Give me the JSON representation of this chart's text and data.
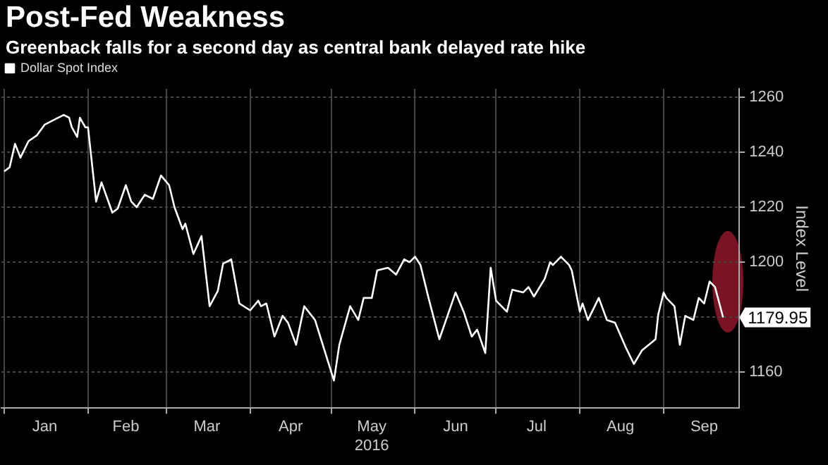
{
  "chart_data": {
    "type": "line",
    "title": "Post-Fed Weakness",
    "subtitle": "Greenback falls for a second day as central bank delayed rate hike",
    "ylabel": "Index Level",
    "x": [
      "2016-01-01",
      "2016-01-03",
      "2016-01-05",
      "2016-01-07",
      "2016-01-10",
      "2016-01-13",
      "2016-01-16",
      "2016-01-19",
      "2016-01-23",
      "2016-01-25",
      "2016-01-26",
      "2016-01-28",
      "2016-01-29",
      "2016-01-31",
      "2016-02-01",
      "2016-02-04",
      "2016-02-06",
      "2016-02-10",
      "2016-02-12",
      "2016-02-15",
      "2016-02-17",
      "2016-02-19",
      "2016-02-22",
      "2016-02-25",
      "2016-02-28",
      "2016-03-02",
      "2016-03-04",
      "2016-03-07",
      "2016-03-08",
      "2016-03-11",
      "2016-03-14",
      "2016-03-17",
      "2016-03-20",
      "2016-03-22",
      "2016-03-25",
      "2016-03-28",
      "2016-04-01",
      "2016-04-04",
      "2016-04-05",
      "2016-04-07",
      "2016-04-10",
      "2016-04-13",
      "2016-04-15",
      "2016-04-18",
      "2016-04-21",
      "2016-04-25",
      "2016-05-02",
      "2016-05-04",
      "2016-05-08",
      "2016-05-11",
      "2016-05-13",
      "2016-05-16",
      "2016-05-18",
      "2016-05-22",
      "2016-05-25",
      "2016-05-28",
      "2016-05-30",
      "2016-06-01",
      "2016-06-03",
      "2016-06-06",
      "2016-06-10",
      "2016-06-13",
      "2016-06-16",
      "2016-06-19",
      "2016-06-22",
      "2016-06-24",
      "2016-06-27",
      "2016-06-29",
      "2016-07-01",
      "2016-07-05",
      "2016-07-07",
      "2016-07-11",
      "2016-07-13",
      "2016-07-15",
      "2016-07-19",
      "2016-07-21",
      "2016-07-22",
      "2016-07-25",
      "2016-07-28",
      "2016-07-29",
      "2016-08-01",
      "2016-08-02",
      "2016-08-04",
      "2016-08-08",
      "2016-08-11",
      "2016-08-14",
      "2016-08-18",
      "2016-08-21",
      "2016-08-24",
      "2016-08-29",
      "2016-08-30",
      "2016-09-01",
      "2016-09-02",
      "2016-09-05",
      "2016-09-07",
      "2016-09-09",
      "2016-09-12",
      "2016-09-14",
      "2016-09-16",
      "2016-09-18",
      "2016-09-20",
      "2016-09-23"
    ],
    "series": [
      {
        "name": "Dollar Spot Index",
        "color": "#ffffff",
        "values": [
          1233,
          1234.5,
          1243,
          1238,
          1244,
          1246,
          1250,
          1251.5,
          1253.5,
          1252.5,
          1249,
          1245.5,
          1252.5,
          1249,
          1249,
          1222,
          1229,
          1218,
          1219.5,
          1228,
          1222,
          1220,
          1224.5,
          1223,
          1231.5,
          1228,
          1220,
          1212,
          1214,
          1203,
          1209.5,
          1184,
          1189.5,
          1199.5,
          1201,
          1185,
          1182.5,
          1186,
          1184,
          1185,
          1173,
          1180.5,
          1178,
          1170,
          1184,
          1179,
          1157,
          1170,
          1184,
          1179,
          1187,
          1187,
          1197,
          1198,
          1195.5,
          1201,
          1200,
          1202,
          1199,
          1187,
          1172,
          1180.5,
          1189,
          1182,
          1173,
          1175.5,
          1167,
          1198,
          1186,
          1182,
          1190,
          1189,
          1191,
          1187.5,
          1194,
          1200,
          1199,
          1202,
          1199,
          1197,
          1182,
          1185,
          1179,
          1187,
          1179,
          1178,
          1169,
          1163,
          1168,
          1172,
          1181,
          1189,
          1187,
          1184,
          1170,
          1180.5,
          1179,
          1187,
          1185,
          1193,
          1191,
          1179.95
        ]
      }
    ],
    "xlim": [
      "2015-12-31",
      "2016-09-29"
    ],
    "xticks": [
      {
        "value": "2016-01-01",
        "label": null
      },
      {
        "value": "2016-01-16",
        "label": "Jan"
      },
      {
        "value": "2016-02-01",
        "label": null
      },
      {
        "value": "2016-02-15",
        "label": "Feb"
      },
      {
        "value": "2016-03-01",
        "label": null
      },
      {
        "value": "2016-03-16",
        "label": "Mar"
      },
      {
        "value": "2016-04-01",
        "label": null
      },
      {
        "value": "2016-04-16",
        "label": "Apr"
      },
      {
        "value": "2016-05-01",
        "label": null
      },
      {
        "value": "2016-05-16",
        "label": "May\n2016"
      },
      {
        "value": "2016-06-01",
        "label": null
      },
      {
        "value": "2016-06-16",
        "label": "Jun"
      },
      {
        "value": "2016-07-01",
        "label": null
      },
      {
        "value": "2016-07-16",
        "label": "Jul"
      },
      {
        "value": "2016-08-01",
        "label": null
      },
      {
        "value": "2016-08-16",
        "label": "Aug"
      },
      {
        "value": "2016-09-01",
        "label": null
      },
      {
        "value": "2016-09-16",
        "label": "Sep"
      }
    ],
    "ylim": [
      1147,
      1263
    ],
    "yticks": [
      1160,
      {
        "value": 1180,
        "label": null
      },
      1200,
      1220,
      1240,
      1260
    ],
    "annotations": [
      {
        "text": "1179.95",
        "x": "2016-09-23",
        "y": 1179.95
      }
    ],
    "grid": true,
    "legend": "top left",
    "marker": "none",
    "line_style": "solid"
  }
}
